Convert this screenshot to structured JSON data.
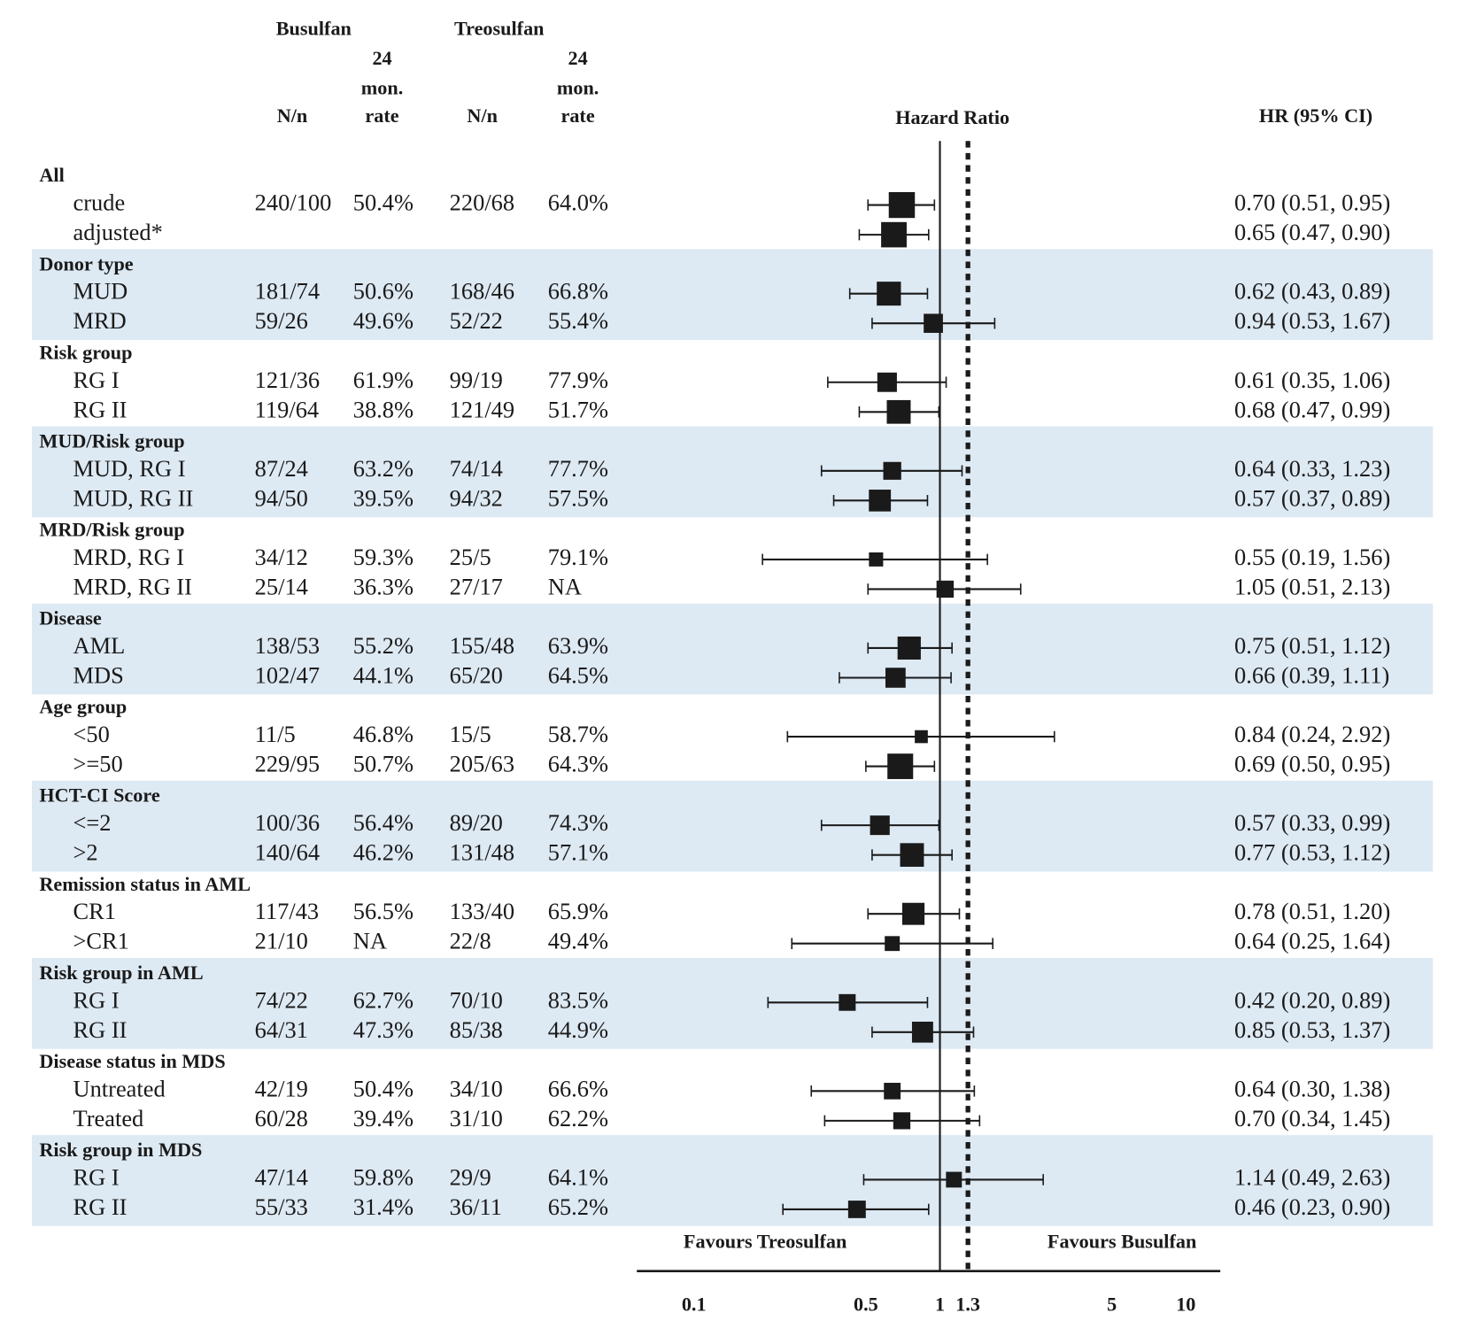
{
  "chart_data": {
    "type": "forest",
    "x_label": "Hazard Ratio",
    "ci_header": "HR (95% CI)",
    "favours_left": "Favours Treosulfan",
    "favours_right": "Favours Busulfan",
    "arm_headers": [
      "Busulfan",
      "Treosulfan"
    ],
    "count_header": "N/n",
    "rate_header": [
      "24",
      "mon.",
      "rate"
    ],
    "log_scale": true,
    "xlim": [
      0.0586,
      13.8
    ],
    "xticks": [
      0.1,
      0.5,
      1,
      1.3,
      5,
      10
    ],
    "null_line": 1,
    "dashed_line": 1.3,
    "color": "#1a1a1a",
    "band_color": "#dde9f3",
    "groups": [
      {
        "name": "All",
        "rows": [
          {
            "label": "crude",
            "bus_n": "240/100",
            "bus_rate": "50.4%",
            "treo_n": "220/68",
            "treo_rate": "64.0%",
            "hr": 0.7,
            "lo": 0.51,
            "hi": 0.95,
            "hr_label": "0.70 (0.51, 0.95)"
          },
          {
            "label": "adjusted*",
            "hr": 0.65,
            "lo": 0.47,
            "hi": 0.9,
            "hr_label": "0.65 (0.47, 0.90)"
          }
        ]
      },
      {
        "name": "Donor type",
        "rows": [
          {
            "label": "MUD",
            "bus_n": "181/74",
            "bus_rate": "50.6%",
            "treo_n": "168/46",
            "treo_rate": "66.8%",
            "hr": 0.62,
            "lo": 0.43,
            "hi": 0.89,
            "hr_label": "0.62 (0.43, 0.89)"
          },
          {
            "label": "MRD",
            "bus_n": "59/26",
            "bus_rate": "49.6%",
            "treo_n": "52/22",
            "treo_rate": "55.4%",
            "hr": 0.94,
            "lo": 0.53,
            "hi": 1.67,
            "hr_label": "0.94 (0.53, 1.67)"
          }
        ]
      },
      {
        "name": "Risk group",
        "rows": [
          {
            "label": "RG I",
            "bus_n": "121/36",
            "bus_rate": "61.9%",
            "treo_n": "99/19",
            "treo_rate": "77.9%",
            "hr": 0.61,
            "lo": 0.35,
            "hi": 1.06,
            "hr_label": "0.61 (0.35, 1.06)"
          },
          {
            "label": "RG II",
            "bus_n": "119/64",
            "bus_rate": "38.8%",
            "treo_n": "121/49",
            "treo_rate": "51.7%",
            "hr": 0.68,
            "lo": 0.47,
            "hi": 0.99,
            "hr_label": "0.68 (0.47, 0.99)"
          }
        ]
      },
      {
        "name": "MUD/Risk group",
        "rows": [
          {
            "label": "MUD, RG I",
            "bus_n": "87/24",
            "bus_rate": "63.2%",
            "treo_n": "74/14",
            "treo_rate": "77.7%",
            "hr": 0.64,
            "lo": 0.33,
            "hi": 1.23,
            "hr_label": "0.64 (0.33, 1.23)"
          },
          {
            "label": "MUD, RG II",
            "bus_n": "94/50",
            "bus_rate": "39.5%",
            "treo_n": "94/32",
            "treo_rate": "57.5%",
            "hr": 0.57,
            "lo": 0.37,
            "hi": 0.89,
            "hr_label": "0.57 (0.37, 0.89)"
          }
        ]
      },
      {
        "name": "MRD/Risk group",
        "rows": [
          {
            "label": "MRD, RG I",
            "bus_n": "34/12",
            "bus_rate": "59.3%",
            "treo_n": "25/5",
            "treo_rate": "79.1%",
            "hr": 0.55,
            "lo": 0.19,
            "hi": 1.56,
            "hr_label": "0.55 (0.19, 1.56)"
          },
          {
            "label": "MRD, RG II",
            "bus_n": "25/14",
            "bus_rate": "36.3%",
            "treo_n": "27/17",
            "treo_rate": "NA",
            "hr": 1.05,
            "lo": 0.51,
            "hi": 2.13,
            "hr_label": "1.05 (0.51, 2.13)"
          }
        ]
      },
      {
        "name": "Disease",
        "rows": [
          {
            "label": "AML",
            "bus_n": "138/53",
            "bus_rate": "55.2%",
            "treo_n": "155/48",
            "treo_rate": "63.9%",
            "hr": 0.75,
            "lo": 0.51,
            "hi": 1.12,
            "hr_label": "0.75 (0.51, 1.12)"
          },
          {
            "label": "MDS",
            "bus_n": "102/47",
            "bus_rate": "44.1%",
            "treo_n": "65/20",
            "treo_rate": "64.5%",
            "hr": 0.66,
            "lo": 0.39,
            "hi": 1.11,
            "hr_label": "0.66 (0.39, 1.11)"
          }
        ]
      },
      {
        "name": "Age group",
        "rows": [
          {
            "label": "<50",
            "bus_n": "11/5",
            "bus_rate": "46.8%",
            "treo_n": "15/5",
            "treo_rate": "58.7%",
            "hr": 0.84,
            "lo": 0.24,
            "hi": 2.92,
            "hr_label": "0.84 (0.24, 2.92)"
          },
          {
            "label": ">=50",
            "bus_n": "229/95",
            "bus_rate": "50.7%",
            "treo_n": "205/63",
            "treo_rate": "64.3%",
            "hr": 0.69,
            "lo": 0.5,
            "hi": 0.95,
            "hr_label": "0.69 (0.50, 0.95)"
          }
        ]
      },
      {
        "name": "HCT-CI Score",
        "rows": [
          {
            "label": "<=2",
            "bus_n": "100/36",
            "bus_rate": "56.4%",
            "treo_n": "89/20",
            "treo_rate": "74.3%",
            "hr": 0.57,
            "lo": 0.33,
            "hi": 0.99,
            "hr_label": "0.57 (0.33, 0.99)"
          },
          {
            "label": ">2",
            "bus_n": "140/64",
            "bus_rate": "46.2%",
            "treo_n": "131/48",
            "treo_rate": "57.1%",
            "hr": 0.77,
            "lo": 0.53,
            "hi": 1.12,
            "hr_label": "0.77 (0.53, 1.12)"
          }
        ]
      },
      {
        "name": "Remission status in AML",
        "rows": [
          {
            "label": "CR1",
            "bus_n": "117/43",
            "bus_rate": "56.5%",
            "treo_n": "133/40",
            "treo_rate": "65.9%",
            "hr": 0.78,
            "lo": 0.51,
            "hi": 1.2,
            "hr_label": "0.78 (0.51, 1.20)"
          },
          {
            "label": ">CR1",
            "bus_n": "21/10",
            "bus_rate": "NA",
            "treo_n": "22/8",
            "treo_rate": "49.4%",
            "hr": 0.64,
            "lo": 0.25,
            "hi": 1.64,
            "hr_label": "0.64 (0.25, 1.64)"
          }
        ]
      },
      {
        "name": "Risk group in AML",
        "rows": [
          {
            "label": "RG I",
            "bus_n": "74/22",
            "bus_rate": "62.7%",
            "treo_n": "70/10",
            "treo_rate": "83.5%",
            "hr": 0.42,
            "lo": 0.2,
            "hi": 0.89,
            "hr_label": "0.42 (0.20, 0.89)"
          },
          {
            "label": "RG II",
            "bus_n": "64/31",
            "bus_rate": "47.3%",
            "treo_n": "85/38",
            "treo_rate": "44.9%",
            "hr": 0.85,
            "lo": 0.53,
            "hi": 1.37,
            "hr_label": "0.85 (0.53, 1.37)"
          }
        ]
      },
      {
        "name": "Disease status in MDS",
        "rows": [
          {
            "label": "Untreated",
            "bus_n": "42/19",
            "bus_rate": "50.4%",
            "treo_n": "34/10",
            "treo_rate": "66.6%",
            "hr": 0.64,
            "lo": 0.3,
            "hi": 1.38,
            "hr_label": "0.64 (0.30, 1.38)"
          },
          {
            "label": "Treated",
            "bus_n": "60/28",
            "bus_rate": "39.4%",
            "treo_n": "31/10",
            "treo_rate": "62.2%",
            "hr": 0.7,
            "lo": 0.34,
            "hi": 1.45,
            "hr_label": "0.70 (0.34, 1.45)"
          }
        ]
      },
      {
        "name": "Risk group in MDS",
        "rows": [
          {
            "label": "RG I",
            "bus_n": "47/14",
            "bus_rate": "59.8%",
            "treo_n": "29/9",
            "treo_rate": "64.1%",
            "hr": 1.14,
            "lo": 0.49,
            "hi": 2.63,
            "hr_label": "1.14 (0.49, 2.63)"
          },
          {
            "label": "RG II",
            "bus_n": "55/33",
            "bus_rate": "31.4%",
            "treo_n": "36/11",
            "treo_rate": "65.2%",
            "hr": 0.46,
            "lo": 0.23,
            "hi": 0.9,
            "hr_label": "0.46 (0.23, 0.90)"
          }
        ]
      }
    ]
  }
}
